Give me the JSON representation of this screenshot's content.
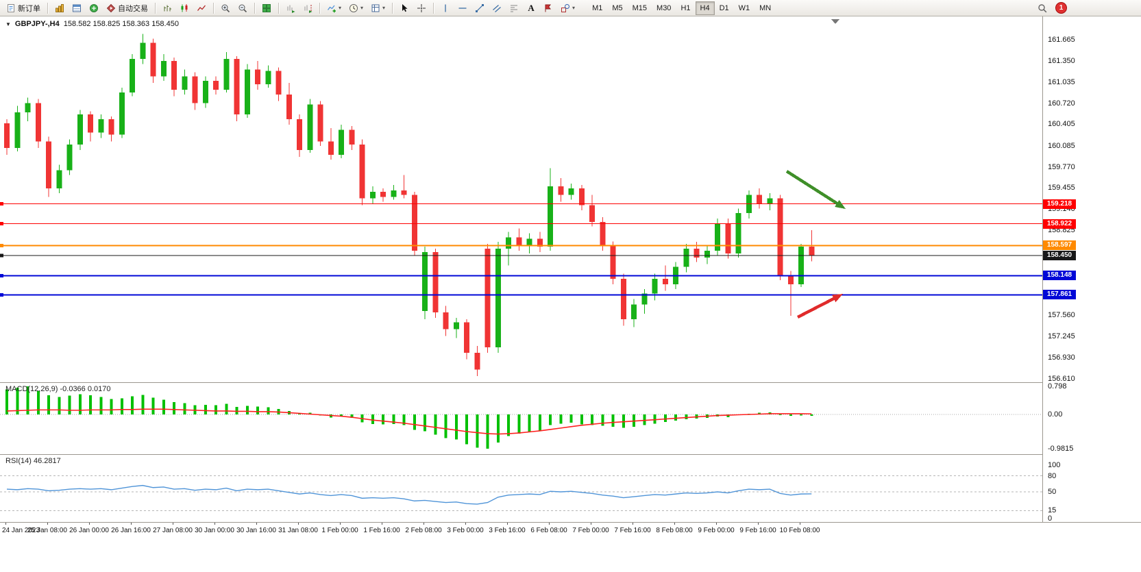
{
  "toolbar": {
    "new_order": "新订单",
    "auto_trading": "自动交易",
    "text_tool": "A",
    "notification_badge": "1",
    "timeframes": [
      "M1",
      "M5",
      "M15",
      "M30",
      "H1",
      "H4",
      "D1",
      "W1",
      "MN"
    ],
    "active_timeframe": "H4",
    "tool_icons": [
      "new-order-icon",
      "symbols-icon",
      "market-watch-icon",
      "navigator-icon",
      "auto-trading-icon",
      "bar-chart-icon",
      "candlestick-icon",
      "line-chart-icon",
      "zoom-in-icon",
      "zoom-out-icon",
      "tile-windows-icon",
      "auto-scroll-icon",
      "chart-shift-icon",
      "indicators-icon",
      "periods-icon",
      "templates-icon",
      "cursor-icon",
      "crosshair-icon",
      "vertical-line-icon",
      "horizontal-line-icon",
      "trendline-icon",
      "channel-icon",
      "fibonacci-icon",
      "text-icon",
      "label-icon",
      "shapes-icon",
      "search-icon"
    ]
  },
  "chart": {
    "symbol_period": "GBPJPY-,H4",
    "ohlc_text": "158.582 158.825 158.363 158.450",
    "macd_label": "MACD(12,26,9)",
    "macd_values": "-0.0366 0.0170",
    "rsi_label": "RSI(14)",
    "rsi_value": "46.2817"
  },
  "chart_data": {
    "type": "candlestick",
    "symbol": "GBPJPY",
    "timeframe": "H4",
    "title": "GBPJPY-,H4",
    "current_ohlc": {
      "open": 158.582,
      "high": 158.825,
      "low": 158.363,
      "close": 158.45
    },
    "colors": {
      "bull": "#18b118",
      "bear": "#f03434",
      "macd_hist": "#00c000",
      "macd_signal": "#ff2020",
      "rsi_line": "#4f94d8",
      "red_line": "#fe0000",
      "orange_line": "#ff8a00",
      "black_line": "#181818",
      "blue_line": "#0008d7",
      "green_arrow": "#3f8f29",
      "red_arrow": "#e02b2b"
    },
    "candles": [
      [
        160.42,
        160.48,
        159.95,
        160.05
      ],
      [
        160.05,
        160.68,
        160.0,
        160.58
      ],
      [
        160.58,
        160.8,
        160.45,
        160.72
      ],
      [
        160.72,
        160.78,
        160.05,
        160.15
      ],
      [
        160.15,
        160.22,
        159.32,
        159.45
      ],
      [
        159.45,
        159.8,
        159.38,
        159.72
      ],
      [
        159.72,
        160.18,
        159.65,
        160.1
      ],
      [
        160.1,
        160.62,
        160.02,
        160.55
      ],
      [
        160.55,
        160.6,
        160.15,
        160.28
      ],
      [
        160.28,
        160.55,
        160.2,
        160.48
      ],
      [
        160.48,
        160.52,
        160.15,
        160.25
      ],
      [
        160.25,
        160.95,
        160.2,
        160.88
      ],
      [
        160.88,
        161.45,
        160.82,
        161.38
      ],
      [
        161.38,
        161.75,
        161.3,
        161.62
      ],
      [
        161.62,
        161.68,
        161.02,
        161.12
      ],
      [
        161.12,
        161.45,
        161.05,
        161.35
      ],
      [
        161.35,
        161.4,
        160.82,
        160.92
      ],
      [
        160.92,
        161.22,
        160.85,
        161.12
      ],
      [
        161.12,
        161.18,
        160.62,
        160.72
      ],
      [
        160.72,
        161.12,
        160.65,
        161.05
      ],
      [
        161.05,
        161.12,
        160.85,
        160.92
      ],
      [
        160.92,
        161.48,
        160.88,
        161.38
      ],
      [
        161.38,
        161.42,
        160.45,
        160.55
      ],
      [
        160.55,
        161.3,
        160.5,
        161.22
      ],
      [
        161.22,
        161.35,
        160.92,
        161.0
      ],
      [
        161.0,
        161.28,
        160.95,
        161.2
      ],
      [
        161.2,
        161.25,
        160.75,
        160.85
      ],
      [
        160.85,
        161.02,
        160.4,
        160.48
      ],
      [
        160.48,
        160.55,
        159.92,
        160.02
      ],
      [
        160.02,
        160.78,
        159.98,
        160.7
      ],
      [
        160.7,
        160.75,
        160.08,
        160.15
      ],
      [
        160.15,
        160.35,
        159.88,
        159.95
      ],
      [
        159.95,
        160.4,
        159.9,
        160.32
      ],
      [
        160.32,
        160.38,
        160.02,
        160.1
      ],
      [
        160.1,
        160.18,
        159.2,
        159.3
      ],
      [
        159.3,
        159.48,
        159.22,
        159.4
      ],
      [
        159.4,
        159.45,
        159.25,
        159.32
      ],
      [
        159.32,
        159.5,
        159.28,
        159.42
      ],
      [
        159.42,
        159.65,
        159.3,
        159.35
      ],
      [
        159.35,
        159.4,
        158.45,
        158.52
      ],
      [
        157.62,
        158.58,
        157.5,
        158.5
      ],
      [
        158.5,
        158.55,
        157.52,
        157.6
      ],
      [
        157.6,
        157.7,
        157.25,
        157.35
      ],
      [
        157.35,
        157.52,
        157.22,
        157.45
      ],
      [
        157.45,
        157.5,
        156.9,
        157.0
      ],
      [
        157.0,
        157.1,
        156.65,
        156.75
      ],
      [
        158.55,
        158.62,
        157.0,
        157.08
      ],
      [
        157.08,
        158.65,
        157.0,
        158.55
      ],
      [
        158.55,
        158.8,
        158.3,
        158.72
      ],
      [
        158.72,
        158.85,
        158.52,
        158.6
      ],
      [
        158.6,
        158.78,
        158.48,
        158.7
      ],
      [
        158.7,
        158.8,
        158.5,
        158.58
      ],
      [
        158.58,
        159.75,
        158.52,
        159.48
      ],
      [
        159.48,
        159.6,
        159.25,
        159.35
      ],
      [
        159.35,
        159.52,
        159.28,
        159.45
      ],
      [
        159.45,
        159.5,
        159.12,
        159.2
      ],
      [
        159.2,
        159.35,
        158.88,
        158.95
      ],
      [
        158.95,
        159.02,
        158.52,
        158.6
      ],
      [
        158.6,
        158.66,
        158.02,
        158.1
      ],
      [
        158.1,
        158.18,
        157.4,
        157.5
      ],
      [
        157.5,
        157.8,
        157.38,
        157.72
      ],
      [
        157.72,
        157.95,
        157.58,
        157.88
      ],
      [
        157.88,
        158.18,
        157.78,
        158.1
      ],
      [
        158.1,
        158.3,
        157.92,
        158.02
      ],
      [
        158.02,
        158.35,
        157.95,
        158.28
      ],
      [
        158.28,
        158.62,
        158.2,
        158.55
      ],
      [
        158.55,
        158.65,
        158.35,
        158.42
      ],
      [
        158.42,
        158.6,
        158.32,
        158.52
      ],
      [
        158.52,
        159.0,
        158.45,
        158.92
      ],
      [
        158.92,
        159.0,
        158.4,
        158.48
      ],
      [
        158.48,
        159.15,
        158.42,
        159.08
      ],
      [
        159.08,
        159.42,
        159.0,
        159.35
      ],
      [
        159.35,
        159.45,
        159.15,
        159.22
      ],
      [
        159.22,
        159.38,
        159.12,
        159.3
      ],
      [
        159.3,
        159.35,
        158.08,
        158.15
      ],
      [
        158.15,
        158.22,
        157.55,
        158.02
      ],
      [
        158.02,
        158.62,
        157.98,
        158.58
      ],
      [
        158.582,
        158.825,
        158.363,
        158.45
      ]
    ],
    "hlines": [
      {
        "price": 159.218,
        "color": "#fe0000",
        "width": 1
      },
      {
        "price": 158.922,
        "color": "#fe0000",
        "width": 1
      },
      {
        "price": 158.597,
        "color": "#ff8a00",
        "width": 2
      },
      {
        "price": 158.45,
        "color": "#181818",
        "width": 1
      },
      {
        "price": 158.148,
        "color": "#0008d7",
        "width": 2
      },
      {
        "price": 157.861,
        "color": "#0008d7",
        "width": 2
      }
    ],
    "arrows": [
      {
        "name": "green-arrow",
        "color": "#3f8f29",
        "from": [
          1148,
          226
        ],
        "to": [
          1234,
          281
        ]
      },
      {
        "name": "red-arrow",
        "color": "#e02b2b",
        "from": [
          1164,
          439
        ],
        "to": [
          1230,
          405
        ]
      }
    ],
    "price_axis_labels": [
      161.665,
      161.35,
      161.035,
      160.72,
      160.405,
      160.085,
      159.77,
      159.455,
      159.14,
      158.825,
      157.56,
      157.245,
      156.93,
      156.61
    ],
    "time_axis_labels": [
      "24 Jan 2023",
      "25 Jan 08:00",
      "26 Jan 00:00",
      "26 Jan 16:00",
      "27 Jan 08:00",
      "30 Jan 00:00",
      "30 Jan 16:00",
      "31 Jan 08:00",
      "1 Feb 00:00",
      "1 Feb 16:00",
      "2 Feb 08:00",
      "3 Feb 00:00",
      "3 Feb 16:00",
      "6 Feb 08:00",
      "7 Feb 00:00",
      "7 Feb 16:00",
      "8 Feb 08:00",
      "9 Feb 00:00",
      "9 Feb 16:00",
      "10 Feb 08:00"
    ],
    "macd": {
      "params": "12,26,9",
      "main_value": -0.0366,
      "signal_value": 0.017,
      "scale_labels": [
        "0.798",
        "0.00",
        "-0.9815"
      ],
      "hist": [
        0.72,
        0.76,
        0.8,
        0.68,
        0.55,
        0.5,
        0.54,
        0.58,
        0.55,
        0.5,
        0.44,
        0.46,
        0.52,
        0.56,
        0.48,
        0.42,
        0.35,
        0.32,
        0.26,
        0.27,
        0.26,
        0.3,
        0.22,
        0.25,
        0.23,
        0.21,
        0.16,
        0.1,
        0.02,
        0.05,
        -0.03,
        -0.09,
        -0.05,
        -0.1,
        -0.23,
        -0.27,
        -0.28,
        -0.27,
        -0.3,
        -0.44,
        -0.48,
        -0.58,
        -0.68,
        -0.72,
        -0.85,
        -0.95,
        -0.98,
        -0.8,
        -0.62,
        -0.55,
        -0.5,
        -0.46,
        -0.3,
        -0.26,
        -0.24,
        -0.28,
        -0.3,
        -0.32,
        -0.35,
        -0.38,
        -0.35,
        -0.3,
        -0.26,
        -0.22,
        -0.18,
        -0.14,
        -0.12,
        -0.1,
        -0.06,
        -0.08,
        -0.02,
        0.02,
        0.05,
        0.06,
        0.0,
        -0.04,
        -0.03,
        -0.04
      ],
      "signal": [
        0.1,
        0.11,
        0.12,
        0.13,
        0.13,
        0.13,
        0.12,
        0.12,
        0.13,
        0.13,
        0.13,
        0.14,
        0.14,
        0.15,
        0.15,
        0.15,
        0.14,
        0.13,
        0.12,
        0.11,
        0.1,
        0.1,
        0.09,
        0.09,
        0.08,
        0.08,
        0.07,
        0.05,
        0.03,
        0.01,
        -0.01,
        -0.03,
        -0.05,
        -0.08,
        -0.12,
        -0.16,
        -0.19,
        -0.22,
        -0.25,
        -0.29,
        -0.33,
        -0.37,
        -0.41,
        -0.45,
        -0.49,
        -0.52,
        -0.55,
        -0.56,
        -0.55,
        -0.53,
        -0.5,
        -0.47,
        -0.43,
        -0.39,
        -0.35,
        -0.31,
        -0.28,
        -0.25,
        -0.23,
        -0.21,
        -0.19,
        -0.17,
        -0.15,
        -0.13,
        -0.11,
        -0.09,
        -0.07,
        -0.05,
        -0.03,
        -0.02,
        -0.01,
        0.0,
        0.01,
        0.02,
        0.02,
        0.02,
        0.02,
        0.017
      ]
    },
    "rsi": {
      "period": 14,
      "current": 46.2817,
      "levels": [
        80,
        50,
        15
      ],
      "scale_labels": [
        "100",
        "80",
        "50",
        "15",
        "0"
      ],
      "values": [
        55,
        54,
        56,
        55,
        52,
        53,
        55,
        56,
        55,
        56,
        54,
        57,
        60,
        62,
        58,
        59,
        55,
        56,
        53,
        55,
        54,
        57,
        52,
        55,
        54,
        55,
        52,
        49,
        46,
        48,
        45,
        43,
        45,
        43,
        38,
        39,
        38,
        39,
        37,
        33,
        34,
        32,
        30,
        31,
        28,
        27,
        30,
        40,
        44,
        45,
        46,
        45,
        51,
        50,
        51,
        49,
        47,
        44,
        42,
        39,
        41,
        43,
        45,
        44,
        46,
        48,
        47,
        48,
        50,
        48,
        52,
        55,
        54,
        55,
        47,
        44,
        46,
        46.28
      ]
    }
  }
}
